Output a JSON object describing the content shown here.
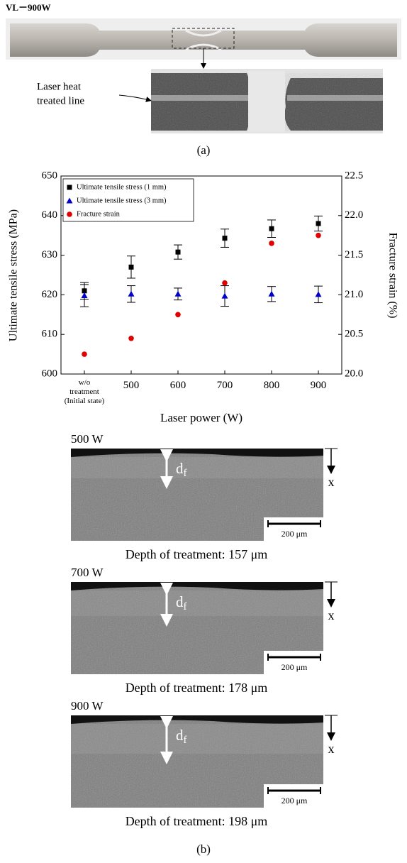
{
  "figure_a": {
    "specimen_label": "VL－900W",
    "annotation_lines": [
      "Laser heat",
      "treated line"
    ],
    "caption": "(a)"
  },
  "chart_data": {
    "type": "scatter",
    "categories": [
      "w/o\ntreatment\n(Initial state)",
      "500",
      "600",
      "700",
      "800",
      "900"
    ],
    "series": [
      {
        "name": "Ultimate tensile stress (1 mm)",
        "color": "#000000",
        "marker": "square",
        "axis": "y",
        "values": [
          621,
          627,
          630.8,
          634.3,
          636.7,
          638
        ],
        "errors": [
          2.1,
          2.8,
          1.8,
          2.3,
          2.2,
          1.9
        ]
      },
      {
        "name": "Ultimate tensile stress (3 mm)",
        "color": "#0000cc",
        "marker": "triangle",
        "axis": "y",
        "values": [
          619.8,
          620.2,
          620.2,
          619.7,
          620.2,
          620.1
        ],
        "errors": [
          2.8,
          2.1,
          1.5,
          2.6,
          1.9,
          2.1
        ]
      },
      {
        "name": "Fracture strain",
        "color": "#e00000",
        "marker": "circle",
        "axis": "y2",
        "values": [
          20.25,
          20.45,
          20.75,
          21.15,
          21.65,
          21.75
        ]
      }
    ],
    "xlabel": "Laser power (W)",
    "ylabel": "Ultimate tensile stress (MPa)",
    "y2label": "Fracture strain (%)",
    "ylim": [
      600,
      650
    ],
    "yticks": [
      600,
      610,
      620,
      630,
      640,
      650
    ],
    "y2lim": [
      20,
      22.5
    ],
    "y2ticks": [
      {
        "value": 20,
        "label": "20.0"
      },
      20.5,
      {
        "value": 21,
        "label": "21.0"
      },
      21.5,
      {
        "value": 22,
        "label": "22.0"
      },
      22.5
    ],
    "legend": "upper left",
    "grid": false
  },
  "figure_b": {
    "panels": [
      {
        "power": "500 W",
        "depth_symbol": "d",
        "depth_subscript": "f",
        "axis_symbol": "x",
        "scale_bar": "200 μm",
        "caption": "Depth of treatment: 157 μm"
      },
      {
        "power": "700 W",
        "depth_symbol": "d",
        "depth_subscript": "f",
        "axis_symbol": "x",
        "scale_bar": "200 μm",
        "caption": "Depth of treatment: 178 μm"
      },
      {
        "power": "900 W",
        "depth_symbol": "d",
        "depth_subscript": "f",
        "axis_symbol": "x",
        "scale_bar": "200 μm",
        "caption": "Depth of treatment: 198 μm"
      }
    ],
    "caption": "(b)"
  }
}
